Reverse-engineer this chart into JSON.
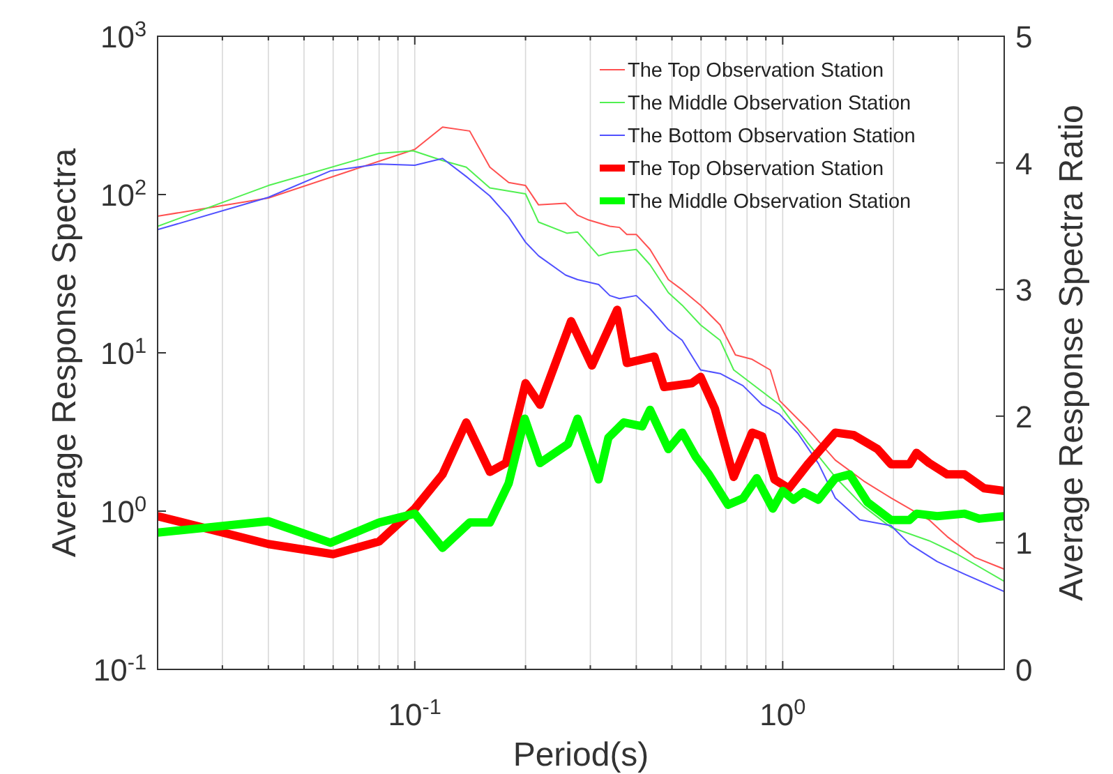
{
  "chart_data": {
    "type": "line",
    "xlabel": "Period(s)",
    "ylabel": "Average Response Spectra",
    "y2label": "Average Response Spectra Ratio",
    "log": "xy",
    "grid": "x",
    "legend": "top right",
    "line_style": "solid",
    "xlim": [
      0.02,
      4
    ],
    "ylim": [
      0.1,
      1000
    ],
    "y2lim": [
      0,
      5
    ],
    "xticks": [
      {
        "value": 0.02,
        "label": null
      },
      {
        "value": 0.03,
        "label": null
      },
      {
        "value": 0.04,
        "label": null
      },
      {
        "value": 0.05,
        "label": null
      },
      {
        "value": 0.06,
        "label": null
      },
      {
        "value": 0.07,
        "label": null
      },
      {
        "value": 0.08,
        "label": null
      },
      {
        "value": 0.09,
        "label": null
      },
      {
        "value": 0.1,
        "label": "10$^{-1}$"
      },
      {
        "value": 0.2,
        "label": null
      },
      {
        "value": 0.3,
        "label": null
      },
      {
        "value": 0.4,
        "label": null
      },
      {
        "value": 0.5,
        "label": null
      },
      {
        "value": 0.6,
        "label": null
      },
      {
        "value": 0.7,
        "label": null
      },
      {
        "value": 0.8,
        "label": null
      },
      {
        "value": 0.9,
        "label": null
      },
      {
        "value": 1,
        "label": "10$^{0}$"
      },
      {
        "value": 2,
        "label": null
      },
      {
        "value": 3,
        "label": null
      },
      {
        "value": 4,
        "label": null
      }
    ],
    "yticks": [
      {
        "value": 0.1,
        "label": "10$^{-1}$"
      },
      {
        "value": 1,
        "label": "10$^{0}$"
      },
      {
        "value": 10,
        "label": "10$^{1}$"
      },
      {
        "value": 100,
        "label": "10$^{2}$"
      },
      {
        "value": 1000,
        "label": "10$^{3}$"
      }
    ],
    "y2ticks": [
      0,
      1,
      2,
      3,
      4,
      5
    ],
    "series": [
      {
        "name": "The Top Observation Station",
        "color": "#ff5050",
        "x": [
          0.02,
          0.04,
          0.1,
          0.119,
          0.141,
          0.16,
          0.18,
          0.2,
          0.217,
          0.257,
          0.277,
          0.297,
          0.339,
          0.36,
          0.377,
          0.4,
          0.436,
          0.489,
          0.533,
          0.598,
          0.676,
          0.744,
          0.826,
          0.925,
          0.98,
          1.17,
          1.39,
          1.66,
          1.97,
          2.5,
          2.8,
          3.33,
          4
        ],
        "values": [
          73,
          95,
          193,
          267,
          252,
          149,
          119,
          114,
          86,
          88,
          74,
          69,
          63,
          62,
          56,
          56,
          45,
          29,
          25,
          20,
          15,
          9.7,
          9.1,
          7.8,
          5.0,
          3.3,
          2.1,
          1.55,
          1.21,
          0.88,
          0.69,
          0.51,
          0.43
        ]
      },
      {
        "name": "The Middle Observation Station",
        "color": "#50f050",
        "x": [
          0.02,
          0.04,
          0.08,
          0.099,
          0.119,
          0.138,
          0.16,
          0.2,
          0.217,
          0.259,
          0.277,
          0.316,
          0.339,
          0.4,
          0.436,
          0.489,
          0.533,
          0.598,
          0.676,
          0.736,
          0.98,
          1.17,
          1.39,
          1.66,
          1.97,
          2.5,
          2.96,
          4
        ],
        "values": [
          63,
          114,
          182,
          189,
          164,
          149,
          110,
          101,
          67,
          57,
          58,
          41,
          43,
          45,
          36,
          24,
          20,
          15,
          12,
          7.8,
          4.7,
          2.7,
          1.64,
          1.07,
          0.79,
          0.65,
          0.54,
          0.36
        ]
      },
      {
        "name": "The Bottom Observation Station",
        "color": "#5050ff",
        "x": [
          0.02,
          0.04,
          0.059,
          0.08,
          0.1,
          0.119,
          0.138,
          0.16,
          0.18,
          0.2,
          0.217,
          0.257,
          0.277,
          0.316,
          0.339,
          0.36,
          0.4,
          0.436,
          0.489,
          0.533,
          0.598,
          0.676,
          0.78,
          0.88,
          0.98,
          1.1,
          1.25,
          1.39,
          1.62,
          1.97,
          2.21,
          2.63,
          3.12,
          4
        ],
        "values": [
          60,
          96,
          141,
          156,
          153,
          169,
          130,
          98,
          72,
          50,
          41,
          31,
          29,
          27,
          23,
          22,
          23,
          19,
          14,
          12,
          7.8,
          7.4,
          6.2,
          4.7,
          4.1,
          3.1,
          2.0,
          1.21,
          0.88,
          0.81,
          0.62,
          0.48,
          0.4,
          0.31
        ]
      },
      {
        "name": "The Top Observation Station",
        "color": "#ff0000",
        "axis": "y2",
        "x": [
          0.02,
          0.04,
          0.06,
          0.08,
          0.1,
          0.119,
          0.138,
          0.16,
          0.177,
          0.2,
          0.219,
          0.266,
          0.303,
          0.355,
          0.377,
          0.448,
          0.476,
          0.566,
          0.598,
          0.654,
          0.736,
          0.826,
          0.88,
          0.95,
          1.04,
          1.17,
          1.39,
          1.56,
          1.81,
          1.97,
          2.21,
          2.31,
          2.5,
          2.8,
          3.12,
          3.53,
          4
        ],
        "values": [
          1.21,
          0.99,
          0.91,
          1.01,
          1.27,
          1.54,
          1.95,
          1.56,
          1.63,
          2.26,
          2.09,
          2.75,
          2.4,
          2.84,
          2.42,
          2.47,
          2.23,
          2.26,
          2.31,
          2.06,
          1.52,
          1.87,
          1.84,
          1.5,
          1.43,
          1.62,
          1.87,
          1.85,
          1.74,
          1.62,
          1.62,
          1.71,
          1.63,
          1.54,
          1.54,
          1.43,
          1.41
        ]
      },
      {
        "name": "The Middle Observation Station",
        "color": "#00ff00",
        "axis": "y2",
        "x": [
          0.02,
          0.04,
          0.059,
          0.08,
          0.1,
          0.119,
          0.141,
          0.16,
          0.18,
          0.199,
          0.219,
          0.261,
          0.277,
          0.316,
          0.336,
          0.37,
          0.415,
          0.436,
          0.489,
          0.533,
          0.58,
          0.63,
          0.71,
          0.78,
          0.85,
          0.94,
          1.0,
          1.07,
          1.14,
          1.25,
          1.39,
          1.52,
          1.7,
          1.97,
          2.21,
          2.31,
          2.63,
          3.12,
          3.42,
          4
        ],
        "values": [
          1.08,
          1.17,
          1.0,
          1.16,
          1.23,
          0.96,
          1.16,
          1.16,
          1.47,
          1.98,
          1.63,
          1.78,
          1.98,
          1.5,
          1.83,
          1.95,
          1.92,
          2.05,
          1.74,
          1.87,
          1.68,
          1.54,
          1.3,
          1.35,
          1.51,
          1.27,
          1.41,
          1.34,
          1.4,
          1.34,
          1.51,
          1.54,
          1.32,
          1.18,
          1.18,
          1.23,
          1.21,
          1.23,
          1.19,
          1.21
        ]
      }
    ]
  }
}
